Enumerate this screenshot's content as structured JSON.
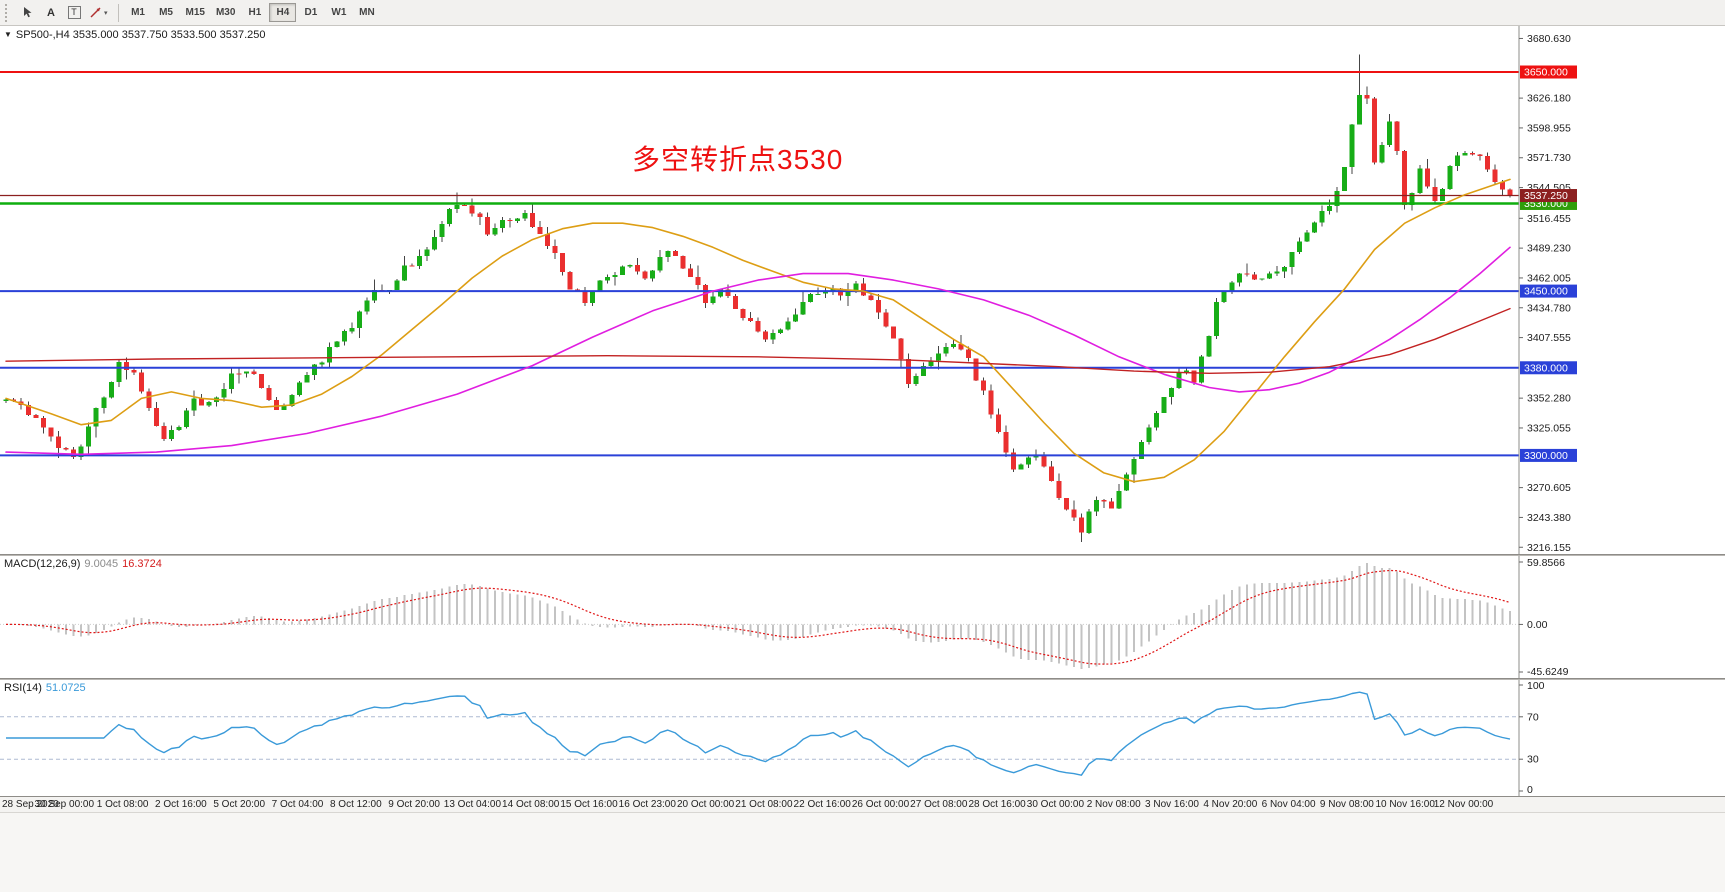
{
  "toolbar": {
    "tools": [
      {
        "name": "cursor-tool"
      },
      {
        "name": "text-label-tool",
        "glyph": "A"
      },
      {
        "name": "text-box-tool",
        "glyph": "T"
      },
      {
        "name": "trendline-style-tool",
        "dropdown_glyph": "▾"
      }
    ],
    "timeframes": [
      "M1",
      "M5",
      "M15",
      "M30",
      "H1",
      "H4",
      "D1",
      "W1",
      "MN"
    ],
    "active_timeframe": "H4"
  },
  "chart": {
    "collapse_icon": "▼",
    "symbol_header": "SP500-,H4  3535.000 3537.750 3533.500 3537.250",
    "annotation": {
      "text": "多空转折点3530",
      "color": "#ee1111"
    }
  },
  "macd_panel": {
    "label": "MACD(12,26,9)",
    "value_main": "9.0045",
    "value_signal": "16.3724",
    "axis": [
      "59.8566",
      "0.00",
      "-45.6249"
    ]
  },
  "rsi_panel": {
    "label": "RSI(14)",
    "value": "51.0725",
    "axis": [
      "100",
      "70",
      "30",
      "0"
    ]
  },
  "chart_data": {
    "type": "candlestick",
    "symbol": "SP500-",
    "timeframe": "H4",
    "last_price": 3537.25,
    "last_ohlc": {
      "open": 3535.0,
      "high": 3537.75,
      "low": 3533.5,
      "close": 3537.25
    },
    "price_axis": {
      "min": 3210,
      "max": 3692,
      "ticks": [
        "3680.630",
        "3626.180",
        "3598.955",
        "3571.730",
        "3544.505",
        "3516.455",
        "3489.230",
        "3462.005",
        "3434.780",
        "3407.555",
        "3352.280",
        "3325.055",
        "3270.605",
        "3243.380",
        "3216.155"
      ]
    },
    "levels": [
      {
        "price": 3650.0,
        "color": "#ee1111",
        "width": 2,
        "label": "3650.000",
        "label_bg": "#ee1111"
      },
      {
        "price": 3450.0,
        "color": "#2a41d8",
        "width": 2,
        "label": "3450.000",
        "label_bg": "#2a41d8"
      },
      {
        "price": 3380.0,
        "color": "#2a41d8",
        "width": 2,
        "label": "3380.000",
        "label_bg": "#2a41d8"
      },
      {
        "price": 3300.0,
        "color": "#2a41d8",
        "width": 2,
        "label": "3300.000",
        "label_bg": "#2a41d8"
      },
      {
        "price": 3530.0,
        "color": "#0fae0f",
        "width": 2.5,
        "label": "3530.000",
        "label_bg": "#2f9e0a"
      },
      {
        "price": 3537.25,
        "color": "#8c2020",
        "width": 1.2,
        "label": "3537.250",
        "label_bg": "#8c2020"
      }
    ],
    "num_bars": 201,
    "noise": 4,
    "wick_max": 6,
    "close_waypoints": [
      [
        0,
        3355
      ],
      [
        4,
        3335
      ],
      [
        7,
        3310
      ],
      [
        9,
        3298
      ],
      [
        11,
        3325
      ],
      [
        13,
        3355
      ],
      [
        15,
        3382
      ],
      [
        17,
        3378
      ],
      [
        19,
        3345
      ],
      [
        21,
        3315
      ],
      [
        23,
        3330
      ],
      [
        25,
        3352
      ],
      [
        27,
        3345
      ],
      [
        30,
        3372
      ],
      [
        32,
        3380
      ],
      [
        34,
        3365
      ],
      [
        36,
        3342
      ],
      [
        38,
        3355
      ],
      [
        40,
        3372
      ],
      [
        42,
        3388
      ],
      [
        44,
        3402
      ],
      [
        46,
        3420
      ],
      [
        49,
        3452
      ],
      [
        51,
        3448
      ],
      [
        53,
        3470
      ],
      [
        56,
        3488
      ],
      [
        58,
        3512
      ],
      [
        60,
        3532
      ],
      [
        62,
        3524
      ],
      [
        64,
        3505
      ],
      [
        66,
        3512
      ],
      [
        69,
        3518
      ],
      [
        71,
        3500
      ],
      [
        73,
        3482
      ],
      [
        75,
        3455
      ],
      [
        77,
        3442
      ],
      [
        79,
        3458
      ],
      [
        81,
        3468
      ],
      [
        83,
        3476
      ],
      [
        85,
        3462
      ],
      [
        87,
        3480
      ],
      [
        88,
        3490
      ],
      [
        90,
        3470
      ],
      [
        92,
        3452
      ],
      [
        93,
        3440
      ],
      [
        95,
        3448
      ],
      [
        97,
        3436
      ],
      [
        99,
        3420
      ],
      [
        101,
        3402
      ],
      [
        103,
        3418
      ],
      [
        105,
        3432
      ],
      [
        107,
        3446
      ],
      [
        109,
        3452
      ],
      [
        111,
        3448
      ],
      [
        113,
        3456
      ],
      [
        115,
        3442
      ],
      [
        117,
        3420
      ],
      [
        119,
        3388
      ],
      [
        120,
        3366
      ],
      [
        122,
        3382
      ],
      [
        124,
        3396
      ],
      [
        126,
        3402
      ],
      [
        127,
        3398
      ],
      [
        129,
        3372
      ],
      [
        131,
        3340
      ],
      [
        133,
        3305
      ],
      [
        134,
        3286
      ],
      [
        136,
        3298
      ],
      [
        137,
        3302
      ],
      [
        139,
        3278
      ],
      [
        140,
        3258
      ],
      [
        142,
        3240
      ],
      [
        143,
        3230
      ],
      [
        145,
        3262
      ],
      [
        147,
        3252
      ],
      [
        149,
        3282
      ],
      [
        150,
        3300
      ],
      [
        152,
        3325
      ],
      [
        153,
        3342
      ],
      [
        155,
        3365
      ],
      [
        156,
        3378
      ],
      [
        158,
        3370
      ],
      [
        160,
        3408
      ],
      [
        161,
        3438
      ],
      [
        163,
        3458
      ],
      [
        164,
        3468
      ],
      [
        166,
        3462
      ],
      [
        167,
        3458
      ],
      [
        169,
        3468
      ],
      [
        170,
        3476
      ],
      [
        172,
        3498
      ],
      [
        174,
        3515
      ],
      [
        176,
        3528
      ],
      [
        177,
        3538
      ],
      [
        178,
        3560
      ],
      [
        179,
        3600
      ],
      [
        180,
        3632
      ],
      [
        181,
        3625
      ],
      [
        182,
        3565
      ],
      [
        184,
        3602
      ],
      [
        185,
        3575
      ],
      [
        186,
        3528
      ],
      [
        188,
        3558
      ],
      [
        189,
        3545
      ],
      [
        190,
        3532
      ],
      [
        192,
        3562
      ],
      [
        194,
        3578
      ],
      [
        196,
        3570
      ],
      [
        198,
        3548
      ],
      [
        200,
        3537.25
      ]
    ],
    "spikes": [
      {
        "index": 180,
        "high": 3666
      },
      {
        "index": 143,
        "low": 3221
      },
      {
        "index": 60,
        "high": 3540
      }
    ],
    "candle_colors": {
      "up": "#17ad17",
      "down": "#ea2f2f",
      "wick": "#454545"
    },
    "moving_averages": [
      {
        "name": "fast-ma",
        "color": "#dd9e14",
        "width": 1.6,
        "points": [
          [
            0,
            3352
          ],
          [
            6,
            3338
          ],
          [
            10,
            3328
          ],
          [
            14,
            3332
          ],
          [
            18,
            3352
          ],
          [
            22,
            3358
          ],
          [
            26,
            3352
          ],
          [
            30,
            3350
          ],
          [
            34,
            3344
          ],
          [
            38,
            3346
          ],
          [
            42,
            3356
          ],
          [
            46,
            3372
          ],
          [
            50,
            3392
          ],
          [
            54,
            3415
          ],
          [
            58,
            3438
          ],
          [
            62,
            3462
          ],
          [
            66,
            3482
          ],
          [
            70,
            3497
          ],
          [
            74,
            3507
          ],
          [
            78,
            3512
          ],
          [
            82,
            3512
          ],
          [
            86,
            3508
          ],
          [
            90,
            3500
          ],
          [
            94,
            3490
          ],
          [
            98,
            3478
          ],
          [
            102,
            3468
          ],
          [
            106,
            3458
          ],
          [
            110,
            3452
          ],
          [
            114,
            3450
          ],
          [
            118,
            3442
          ],
          [
            122,
            3424
          ],
          [
            126,
            3406
          ],
          [
            130,
            3390
          ],
          [
            134,
            3360
          ],
          [
            138,
            3330
          ],
          [
            142,
            3302
          ],
          [
            146,
            3284
          ],
          [
            150,
            3276
          ],
          [
            154,
            3280
          ],
          [
            158,
            3296
          ],
          [
            162,
            3322
          ],
          [
            166,
            3356
          ],
          [
            170,
            3390
          ],
          [
            174,
            3422
          ],
          [
            178,
            3452
          ],
          [
            182,
            3488
          ],
          [
            186,
            3512
          ],
          [
            190,
            3526
          ],
          [
            194,
            3538
          ],
          [
            200,
            3552
          ]
        ]
      },
      {
        "name": "slow-ma",
        "color": "#e01ee0",
        "width": 1.6,
        "points": [
          [
            0,
            3303
          ],
          [
            10,
            3301
          ],
          [
            20,
            3303
          ],
          [
            30,
            3309
          ],
          [
            40,
            3320
          ],
          [
            50,
            3336
          ],
          [
            60,
            3356
          ],
          [
            70,
            3382
          ],
          [
            78,
            3408
          ],
          [
            86,
            3432
          ],
          [
            94,
            3450
          ],
          [
            100,
            3460
          ],
          [
            106,
            3466
          ],
          [
            112,
            3466
          ],
          [
            118,
            3460
          ],
          [
            124,
            3452
          ],
          [
            130,
            3442
          ],
          [
            136,
            3428
          ],
          [
            142,
            3410
          ],
          [
            148,
            3390
          ],
          [
            154,
            3374
          ],
          [
            160,
            3362
          ],
          [
            164,
            3358
          ],
          [
            168,
            3360
          ],
          [
            172,
            3366
          ],
          [
            176,
            3376
          ],
          [
            180,
            3390
          ],
          [
            184,
            3406
          ],
          [
            188,
            3424
          ],
          [
            192,
            3444
          ],
          [
            196,
            3466
          ],
          [
            200,
            3490
          ]
        ]
      },
      {
        "name": "slowest-ma",
        "color": "#c22222",
        "width": 1.4,
        "points": [
          [
            0,
            3386
          ],
          [
            20,
            3388
          ],
          [
            40,
            3389
          ],
          [
            60,
            3390
          ],
          [
            80,
            3391
          ],
          [
            100,
            3390
          ],
          [
            120,
            3387
          ],
          [
            140,
            3381
          ],
          [
            150,
            3377
          ],
          [
            160,
            3375
          ],
          [
            168,
            3376
          ],
          [
            176,
            3381
          ],
          [
            184,
            3392
          ],
          [
            190,
            3406
          ],
          [
            195,
            3420
          ],
          [
            200,
            3434
          ]
        ]
      }
    ],
    "x_labels": [
      "28 Sep 2020",
      "30 Sep 00:00",
      "1 Oct 08:00",
      "2 Oct 16:00",
      "5 Oct 20:00",
      "7 Oct 04:00",
      "8 Oct 12:00",
      "9 Oct 20:00",
      "13 Oct 04:00",
      "14 Oct 08:00",
      "15 Oct 16:00",
      "16 Oct 23:00",
      "20 Oct 00:00",
      "21 Oct 08:00",
      "22 Oct 16:00",
      "26 Oct 00:00",
      "27 Oct 08:00",
      "28 Oct 16:00",
      "30 Oct 00:00",
      "2 Nov 08:00",
      "3 Nov 16:00",
      "4 Nov 20:00",
      "6 Nov 04:00",
      "9 Nov 08:00",
      "10 Nov 16:00",
      "12 Nov 00:00"
    ],
    "macd": {
      "range": [
        -45.6249,
        59.8566
      ],
      "hist_color": "#c3c3c3",
      "signal_color": "#e01717"
    },
    "rsi": {
      "range": [
        0,
        100
      ],
      "levels": [
        30,
        70
      ],
      "color": "#3a9ad9"
    }
  }
}
